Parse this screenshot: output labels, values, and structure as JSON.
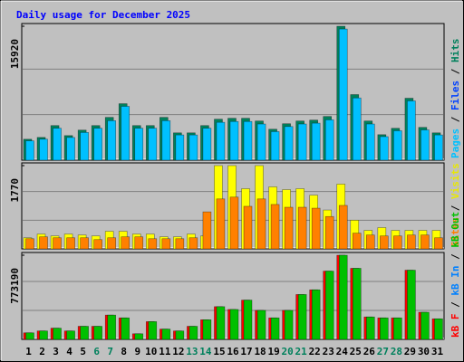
{
  "chart_data": [
    {
      "type": "bar",
      "title": "Daily usage for December 2025",
      "ylim": [
        0,
        15920
      ],
      "yticks": [
        15920
      ],
      "legend": [
        {
          "name": "Pages",
          "color": "#00c0ff"
        },
        {
          "name": "Files",
          "color": "#0040ff"
        },
        {
          "name": "Hits",
          "color": "#00805c"
        }
      ],
      "legend_separator": " / ",
      "series": [
        {
          "name": "Hits",
          "color": "#00805c",
          "values": [
            2491,
            2708,
            4115,
            2924,
            3574,
            4115,
            5090,
            6714,
            4115,
            4115,
            5090,
            3249,
            3249,
            4115,
            4873,
            4982,
            4982,
            4657,
            3682,
            4332,
            4657,
            4765,
            5198,
            15920,
            7798,
            4657,
            3032,
            3791,
            7364,
            3899,
            3249
          ]
        },
        {
          "name": "Pages",
          "color": "#00c0ff",
          "values": [
            2300,
            2500,
            3800,
            2700,
            3300,
            3800,
            4700,
            6400,
            3800,
            3800,
            4700,
            3000,
            3000,
            3800,
            4500,
            4600,
            4600,
            4300,
            3400,
            4000,
            4300,
            4400,
            4800,
            15590,
            7400,
            4300,
            2800,
            3500,
            7050,
            3600,
            3000
          ]
        }
      ]
    },
    {
      "type": "bar",
      "ylim": [
        0,
        1770
      ],
      "yticks": [
        1770
      ],
      "legend": [
        {
          "name": "Sites",
          "color": "#ff8000"
        },
        {
          "name": "Visits",
          "color": "#e8e800"
        }
      ],
      "legend_separator": " / ",
      "series": [
        {
          "name": "Visits",
          "color": "#ffff00",
          "values": [
            236,
            315,
            275,
            315,
            295,
            275,
            374,
            374,
            315,
            315,
            256,
            256,
            315,
            275,
            1770,
            1770,
            1279,
            1770,
            1318,
            1259,
            1279,
            1141,
            826,
            1377,
            610,
            393,
            452,
            393,
            393,
            393,
            393
          ]
        },
        {
          "name": "Sites",
          "color": "#ff8000",
          "values": [
            216,
            256,
            236,
            236,
            236,
            197,
            236,
            256,
            256,
            216,
            216,
            216,
            236,
            787,
            1062,
            1101,
            905,
            1062,
            944,
            885,
            885,
            865,
            688,
            924,
            334,
            295,
            275,
            275,
            295,
            295,
            236
          ]
        }
      ]
    },
    {
      "type": "bar",
      "ylim": [
        0,
        773190
      ],
      "yticks": [
        773190
      ],
      "categories": [
        "1",
        "2",
        "3",
        "4",
        "5",
        "6",
        "7",
        "8",
        "9",
        "10",
        "11",
        "12",
        "13",
        "14",
        "15",
        "16",
        "17",
        "18",
        "19",
        "20",
        "21",
        "22",
        "23",
        "24",
        "25",
        "26",
        "27",
        "28",
        "29",
        "30",
        "31"
      ],
      "category_colors": [
        "#000000",
        "#000000",
        "#000000",
        "#000000",
        "#000000",
        "#00805c",
        "#00805c",
        "#000000",
        "#000000",
        "#000000",
        "#000000",
        "#000000",
        "#00805c",
        "#00805c",
        "#000000",
        "#000000",
        "#000000",
        "#000000",
        "#000000",
        "#00805c",
        "#00805c",
        "#000000",
        "#000000",
        "#000000",
        "#000000",
        "#000000",
        "#00805c",
        "#00805c",
        "#000000",
        "#000000",
        "#000000"
      ],
      "legend": [
        {
          "name": "kB F",
          "color": "#ff0000"
        },
        {
          "name": "kB In",
          "color": "#0080ff"
        },
        {
          "name": "kB Out",
          "color": "#00c000"
        }
      ],
      "legend_separator": " / ",
      "series": [
        {
          "name": "kB F",
          "color": "#ff0000",
          "values": [
            60137,
            77319,
            103092,
            77319,
            120274,
            120274,
            223366,
            197593,
            51546,
            163229,
            94501,
            77319,
            120274,
            180411,
            300685,
            274912,
            360822,
            266321,
            197593,
            266321,
            412368,
            455323,
            627143,
            773190,
            652916,
            206184,
            197593,
            197593,
            635734,
            249139,
            189002
          ]
        },
        {
          "name": "kB Out",
          "color": "#00c000",
          "values": [
            60137,
            77319,
            103092,
            77319,
            120274,
            120274,
            223366,
            197593,
            51546,
            163229,
            94501,
            77319,
            120274,
            180411,
            300685,
            274912,
            360822,
            266321,
            197593,
            266321,
            412368,
            455323,
            627143,
            773190,
            652916,
            206184,
            197593,
            197593,
            635734,
            249139,
            189002
          ]
        }
      ]
    }
  ]
}
